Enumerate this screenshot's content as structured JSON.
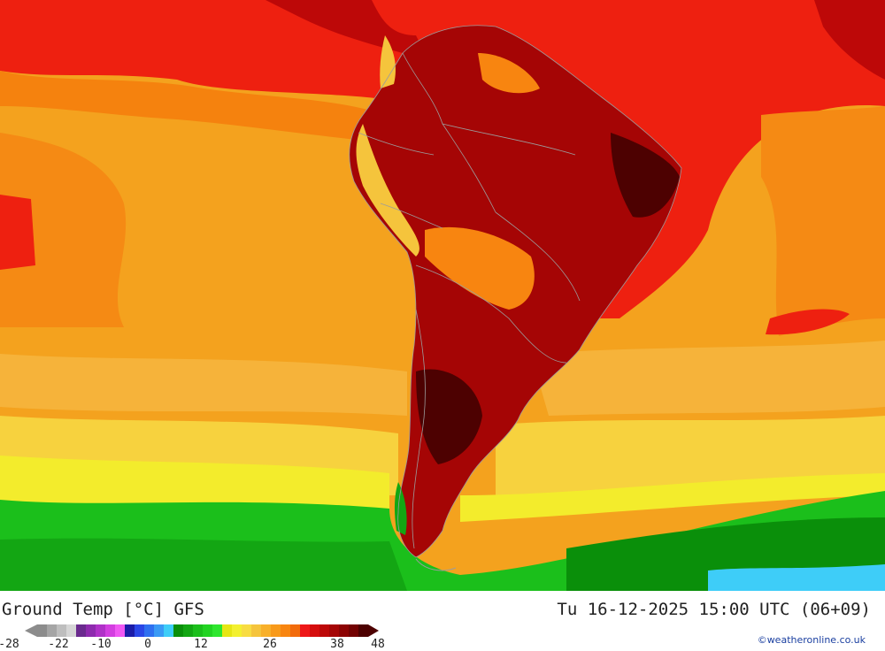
{
  "map": {
    "title": "Ground Temp [°C] GFS",
    "valid_time": "Tu 16-12-2025 15:00 UTC (06+09)",
    "credit": "©weatheronline.co.uk",
    "legend": {
      "tick_labels": [
        "-28",
        "-22",
        "-10",
        "0",
        "12",
        "26",
        "38",
        "48"
      ],
      "colors": [
        "#8c8c8c",
        "#a5a5a5",
        "#bebebe",
        "#d6d6d6",
        "#6a2a8e",
        "#8e2aae",
        "#b031c8",
        "#d33ee0",
        "#f058f3",
        "#1c1ca8",
        "#2a46e6",
        "#2f70f0",
        "#3a9af5",
        "#3ecdf8",
        "#0a8f0a",
        "#13a613",
        "#1bbf1b",
        "#22d422",
        "#2ee62e",
        "#e6e614",
        "#f3f030",
        "#f8dc42",
        "#f5c43c",
        "#f8b02a",
        "#f89a1a",
        "#f88510",
        "#f26b0b",
        "#ee1818",
        "#d50d0d",
        "#bd0808",
        "#a50505",
        "#8c0303",
        "#730202",
        "#4d0101"
      ]
    }
  }
}
